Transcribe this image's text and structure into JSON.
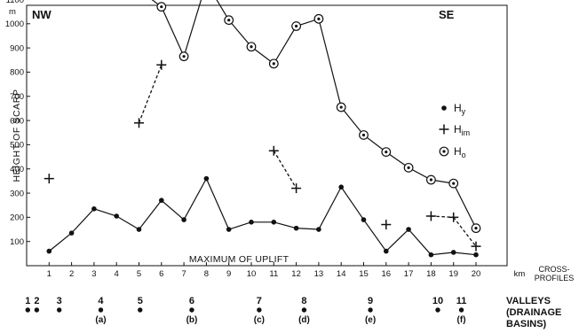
{
  "chart_data": {
    "type": "line",
    "corner_left": "NW",
    "corner_right": "SE",
    "ylabel": "HEIGHT OF SCARP",
    "yunit": "m",
    "xunit": "km",
    "xlabel": "CROSS-PROFILES",
    "x_ticks": [
      1,
      2,
      3,
      4,
      5,
      6,
      7,
      8,
      9,
      10,
      11,
      12,
      13,
      14,
      15,
      16,
      17,
      18,
      19,
      20
    ],
    "y_ticks": [
      100,
      200,
      300,
      400,
      500,
      600,
      700,
      800,
      900,
      1000,
      1100
    ],
    "xlim": [
      0,
      20.7
    ],
    "ylim": [
      0,
      1180
    ],
    "grid": false,
    "legend_position": "right",
    "annotation": "MAXIMUM OF UPLIFT",
    "series": [
      {
        "name": "H",
        "subscript": "y",
        "marker": "dot",
        "line": "solid",
        "x": [
          1,
          2,
          3,
          4,
          5,
          6,
          7,
          8,
          9,
          10,
          11,
          12,
          13,
          14,
          15,
          16,
          17,
          18,
          19,
          20
        ],
        "values": [
          60,
          135,
          235,
          205,
          150,
          270,
          190,
          360,
          150,
          180,
          180,
          155,
          150,
          325,
          190,
          60,
          150,
          45,
          55,
          45
        ]
      },
      {
        "name": "H",
        "subscript": "im",
        "marker": "plus",
        "line": "dashed-pairs",
        "x": [
          1,
          5,
          6,
          11,
          12,
          16,
          18,
          19,
          20
        ],
        "values": [
          360,
          590,
          830,
          475,
          320,
          170,
          205,
          200,
          80
        ],
        "dashed_pairs": [
          [
            1,
            2
          ],
          [
            3,
            4
          ],
          [
            6,
            7
          ],
          [
            7,
            8
          ]
        ]
      },
      {
        "name": "H",
        "subscript": "o",
        "marker": "ring",
        "line": "solid",
        "segments": [
          {
            "x": [
              5,
              6,
              7,
              8,
              9,
              10,
              11,
              12,
              13,
              14,
              15,
              16,
              17,
              18,
              19,
              20
            ],
            "values": [
              1140,
              1070,
              865,
              1170,
              1015,
              905,
              835,
              990,
              1020,
              655,
              540,
              470,
              405,
              355,
              340,
              155
            ]
          }
        ]
      }
    ],
    "valleys": {
      "title_line1": "VALLEYS",
      "title_line2": "(DRAINAGE",
      "title_line3": "BASINS)",
      "items": [
        {
          "num": "1",
          "x": 0.05,
          "letter": ""
        },
        {
          "num": "2",
          "x": 0.45,
          "letter": ""
        },
        {
          "num": "3",
          "x": 1.45,
          "letter": ""
        },
        {
          "num": "4",
          "x": 3.3,
          "letter": "(a)"
        },
        {
          "num": "5",
          "x": 5.05,
          "letter": ""
        },
        {
          "num": "6",
          "x": 7.35,
          "letter": "(b)"
        },
        {
          "num": "7",
          "x": 10.35,
          "letter": "(c)"
        },
        {
          "num": "8",
          "x": 12.35,
          "letter": "(d)"
        },
        {
          "num": "9",
          "x": 15.3,
          "letter": "(e)"
        },
        {
          "num": "10",
          "x": 18.3,
          "letter": ""
        },
        {
          "num": "11",
          "x": 19.35,
          "letter": "(f)"
        }
      ]
    }
  }
}
